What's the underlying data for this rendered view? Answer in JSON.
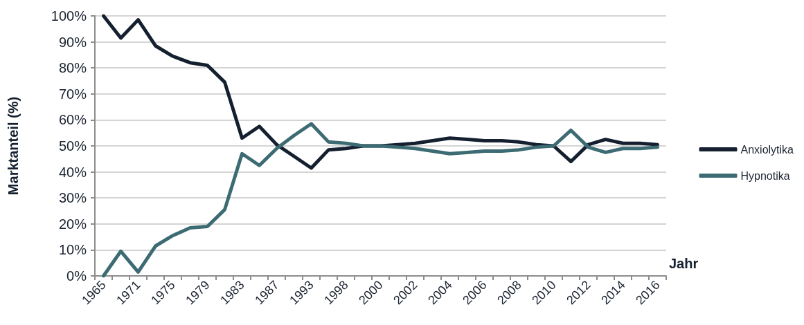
{
  "chart_data": {
    "type": "line",
    "xlabel": "Jahr",
    "ylabel": "Marktanteil (%)",
    "categories": [
      "1965",
      null,
      "1971",
      null,
      "1975",
      null,
      "1979",
      null,
      "1983",
      null,
      "1987",
      null,
      "1993",
      null,
      "1998",
      null,
      "2000",
      null,
      "2002",
      null,
      "2004",
      null,
      "2006",
      null,
      "2008",
      null,
      "2010",
      null,
      "2012",
      null,
      "2014",
      null,
      "2016"
    ],
    "series": [
      {
        "name": "Anxiolytika",
        "color": "#14202f",
        "values": [
          100,
          91.5,
          98.5,
          88.5,
          84.5,
          82,
          81,
          74.5,
          53,
          57.5,
          50.5,
          46,
          41.5,
          48.5,
          49,
          50,
          50,
          50.5,
          51,
          52,
          53,
          52.5,
          52,
          52,
          51.5,
          50.5,
          50,
          44,
          50.5,
          52.5,
          51,
          51,
          50.5
        ]
      },
      {
        "name": "Hypnotika",
        "color": "#3d6b73",
        "values": [
          0,
          9.5,
          1.5,
          11.5,
          15.5,
          18.5,
          19,
          25.5,
          47,
          42.5,
          49,
          54,
          58.5,
          51.5,
          51,
          50,
          50,
          49.5,
          49,
          48,
          47,
          47.5,
          48,
          48,
          48.5,
          49.5,
          50,
          56,
          49.5,
          47.5,
          49,
          49,
          49.5
        ]
      }
    ],
    "ylim": [
      0,
      100
    ],
    "yticks": [
      {
        "value": 0,
        "label": "0%"
      },
      {
        "value": 10,
        "label": "10%"
      },
      {
        "value": 20,
        "label": "20%"
      },
      {
        "value": 30,
        "label": "30%"
      },
      {
        "value": 40,
        "label": "40%"
      },
      {
        "value": 50,
        "label": "50%"
      },
      {
        "value": 60,
        "label": "60%"
      },
      {
        "value": 70,
        "label": "70%"
      },
      {
        "value": 80,
        "label": "80%"
      },
      {
        "value": 90,
        "label": "90%"
      },
      {
        "value": 100,
        "label": "100%"
      }
    ],
    "grid": "y",
    "legend": "right",
    "marker": "none",
    "line_style": "solid"
  }
}
